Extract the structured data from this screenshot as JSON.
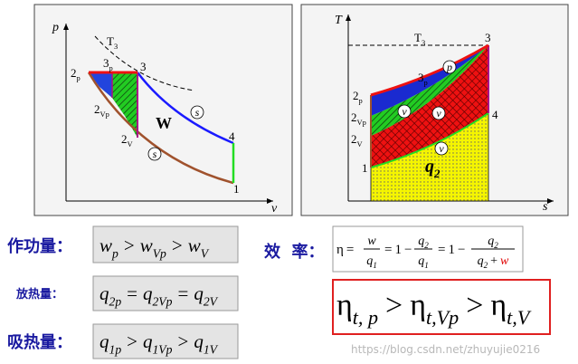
{
  "pv_diagram": {
    "axis_y": "p",
    "axis_x": "v",
    "isotherm": {
      "text": "T",
      "sub": "3"
    },
    "points": [
      {
        "text": "2",
        "sub": "p"
      },
      {
        "text": "3",
        "sub": "p"
      },
      {
        "text": "3"
      },
      {
        "text": "2",
        "sub": "Vp"
      },
      {
        "text": "2",
        "sub": "V"
      },
      {
        "text": "4"
      },
      {
        "text": "1"
      }
    ],
    "area_label": {
      "text": "W"
    },
    "markers": [
      "s",
      "s"
    ]
  },
  "ts_diagram": {
    "axis_y": "T",
    "axis_x": "s",
    "isotherm": {
      "text": "T",
      "sub": "3"
    },
    "points": [
      {
        "text": "2",
        "sub": "p"
      },
      {
        "text": "3",
        "sub": "p"
      },
      {
        "text": "3"
      },
      {
        "text": "2",
        "sub": "Vp"
      },
      {
        "text": "2",
        "sub": "V"
      },
      {
        "text": "4"
      },
      {
        "text": "1"
      }
    ],
    "area_label": {
      "text": "q",
      "sub": "2"
    },
    "markers": [
      "p",
      "v",
      "v",
      "v"
    ]
  },
  "work": {
    "label": "作功量：",
    "formula": [
      {
        "t": "w",
        "sub": "p"
      },
      {
        "t": ">"
      },
      {
        "t": "w",
        "sub": "Vp"
      },
      {
        "t": ">"
      },
      {
        "t": "w",
        "sub": "V"
      }
    ]
  },
  "heat_out": {
    "label": "放热量：",
    "formula": [
      {
        "t": "q",
        "sub": "2p"
      },
      {
        "t": "="
      },
      {
        "t": "q",
        "sub": "2Vp"
      },
      {
        "t": "="
      },
      {
        "t": "q",
        "sub": "2V"
      }
    ]
  },
  "heat_in": {
    "label": "吸热量：",
    "formula": [
      {
        "t": "q",
        "sub": "1p"
      },
      {
        "t": ">"
      },
      {
        "t": "q",
        "sub": "1Vp"
      },
      {
        "t": ">"
      },
      {
        "t": "q",
        "sub": "1V"
      }
    ]
  },
  "efficiency": {
    "label": "效  率：",
    "parts": [
      {
        "tokens": [
          {
            "t": "η"
          },
          {
            "t": "="
          }
        ]
      },
      {
        "num": [
          {
            "t": "w"
          }
        ],
        "den": [
          {
            "t": "q",
            "sub": "1"
          }
        ]
      },
      {
        "tokens": [
          {
            "t": "="
          },
          {
            "t": "1"
          },
          {
            "t": "−"
          }
        ]
      },
      {
        "num": [
          {
            "t": "q",
            "sub": "2"
          }
        ],
        "den": [
          {
            "t": "q",
            "sub": "1"
          }
        ]
      },
      {
        "tokens": [
          {
            "t": "="
          },
          {
            "t": "1"
          },
          {
            "t": "−"
          }
        ]
      },
      {
        "num": [
          {
            "t": "q",
            "sub": "2"
          }
        ],
        "den": [
          {
            "t": "q",
            "sub": "2"
          },
          {
            "t": "+"
          },
          {
            "t": "w",
            "color": "#e00000"
          }
        ]
      }
    ]
  },
  "comparison": {
    "formula": [
      {
        "t": "η",
        "sub": "t, p"
      },
      {
        "t": ">"
      },
      {
        "t": "η",
        "sub": "t,Vp"
      },
      {
        "t": ">"
      },
      {
        "t": "η",
        "sub": "t,V"
      }
    ]
  },
  "watermark": "https://blog.csdn.net/zhuyujie0216"
}
